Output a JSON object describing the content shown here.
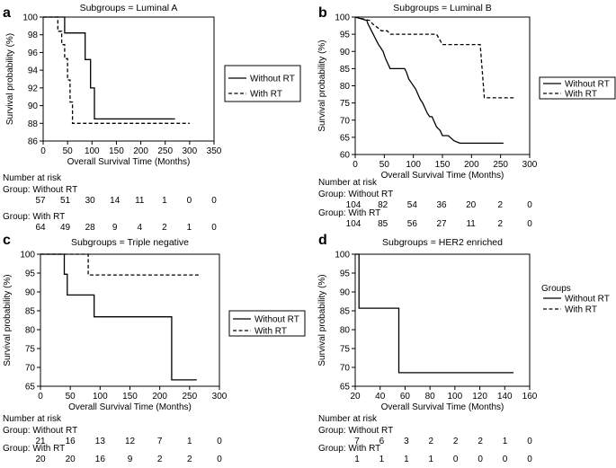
{
  "chart_data": [
    {
      "type": "line",
      "panel_label": "a",
      "title": "Subgroups = Luminal A",
      "xlabel": "Overall Survival Time (Months)",
      "ylabel": "Survival probability (%)",
      "xlim": [
        0,
        350
      ],
      "ylim": [
        86,
        100
      ],
      "xticks": [
        0,
        50,
        100,
        150,
        200,
        250,
        300,
        350
      ],
      "yticks": [
        86,
        88,
        90,
        92,
        94,
        96,
        98,
        100
      ],
      "legend": {
        "title": "",
        "placement": "right-top"
      },
      "series": [
        {
          "name": "Without RT",
          "style": "solid",
          "x": [
            0,
            44,
            44,
            86,
            86,
            97,
            97,
            105,
            105,
            113,
            113,
            270
          ],
          "y": [
            100,
            100,
            98.2,
            98.2,
            95.2,
            95.2,
            92,
            92,
            88.5,
            88.5,
            88.5,
            88.5
          ]
        },
        {
          "name": "With RT",
          "style": "dashed",
          "x": [
            0,
            30,
            30,
            38,
            38,
            44,
            44,
            50,
            50,
            55,
            55,
            60,
            60,
            67,
            67,
            70,
            70,
            300
          ],
          "y": [
            100,
            100,
            98.4,
            98.4,
            96.9,
            96.9,
            95.3,
            95.3,
            92.9,
            92.9,
            90.4,
            90.4,
            88,
            88,
            88,
            88,
            88,
            88
          ]
        }
      ],
      "risk_table": {
        "title": "Number at risk",
        "groups": [
          {
            "label": "Group: Without RT",
            "values": [
              "57",
              "51",
              "30",
              "14",
              "11",
              "1",
              "0",
              "0"
            ]
          },
          {
            "label": "Group: With RT",
            "values": [
              "64",
              "49",
              "28",
              "9",
              "4",
              "2",
              "1",
              "0"
            ]
          }
        ]
      }
    },
    {
      "type": "line",
      "panel_label": "b",
      "title": "Subgroups = Luminal B",
      "xlabel": "Overall Survival Time (Months)",
      "ylabel": "Survival probability (%)",
      "xlim": [
        0,
        300
      ],
      "ylim": [
        60,
        100
      ],
      "xticks": [
        0,
        50,
        100,
        150,
        200,
        250,
        300
      ],
      "yticks": [
        60,
        65,
        70,
        75,
        80,
        85,
        90,
        95,
        100
      ],
      "legend": {
        "title": "",
        "placement": "right-middle"
      },
      "series": [
        {
          "name": "Without RT",
          "style": "solid",
          "x": [
            0,
            20,
            22,
            25,
            28,
            31,
            34,
            37,
            40,
            44,
            48,
            52,
            56,
            60,
            85,
            88,
            92,
            96,
            100,
            104,
            108,
            112,
            116,
            120,
            124,
            128,
            132,
            140,
            146,
            150,
            155,
            160,
            170,
            180,
            255
          ],
          "y": [
            100,
            99,
            98,
            97,
            96,
            95,
            94,
            93,
            92,
            91,
            90,
            88,
            86.5,
            85,
            85,
            84,
            82,
            81,
            80,
            79,
            77.5,
            76,
            75,
            73.5,
            72,
            71,
            71,
            68,
            67,
            65.5,
            65.5,
            65.5,
            64,
            63.3,
            63.3
          ]
        },
        {
          "name": "With RT",
          "style": "dashed",
          "x": [
            0,
            25,
            30,
            38,
            45,
            55,
            60,
            65,
            140,
            150,
            215,
            222,
            275
          ],
          "y": [
            100,
            99,
            98,
            97,
            96,
            96,
            95,
            95,
            95,
            92,
            92,
            76.5,
            76.5
          ]
        }
      ],
      "risk_table": {
        "title": "Number at risk",
        "groups": [
          {
            "label": "Group: Without RT",
            "values": [
              "104",
              "82",
              "54",
              "36",
              "20",
              "2",
              "0"
            ]
          },
          {
            "label": "Group: With RT",
            "values": [
              "104",
              "85",
              "56",
              "27",
              "11",
              "2",
              "0"
            ]
          }
        ]
      }
    },
    {
      "type": "line",
      "panel_label": "c",
      "title": "Subgroups = Triple negative",
      "xlabel": "Overall Survival Time (Months)",
      "ylabel": "Survival probability (%)",
      "xlim": [
        0,
        300
      ],
      "ylim": [
        65,
        100
      ],
      "xticks": [
        0,
        50,
        100,
        150,
        200,
        250,
        300
      ],
      "yticks": [
        65,
        70,
        75,
        80,
        85,
        90,
        95,
        100
      ],
      "legend": {
        "title": "",
        "placement": "right-middle"
      },
      "series": [
        {
          "name": "Without RT",
          "style": "solid",
          "x": [
            0,
            40,
            40,
            45,
            45,
            90,
            90,
            220,
            220,
            262
          ],
          "y": [
            100,
            100,
            94.7,
            94.7,
            89.2,
            89.2,
            83.4,
            83.4,
            66.7,
            66.7
          ]
        },
        {
          "name": "With RT",
          "style": "dashed",
          "x": [
            0,
            80,
            80,
            268
          ],
          "y": [
            100,
            100,
            94.5,
            94.5
          ]
        }
      ],
      "risk_table": {
        "title": "Number at risk",
        "groups": [
          {
            "label": "Group: Without RT",
            "values": [
              "21",
              "16",
              "13",
              "12",
              "7",
              "1",
              "0"
            ]
          },
          {
            "label": "Group: With RT",
            "values": [
              "20",
              "20",
              "16",
              "9",
              "2",
              "2",
              "0"
            ]
          }
        ]
      }
    },
    {
      "type": "line",
      "panel_label": "d",
      "title": "Subgroups = HER2 enriched",
      "xlabel": "Overall Survival Time (Months)",
      "ylabel": "Survival probability (%)",
      "xlim": [
        20,
        160
      ],
      "ylim": [
        65,
        100
      ],
      "xticks": [
        20,
        40,
        60,
        80,
        100,
        120,
        140,
        160
      ],
      "yticks": [
        65,
        70,
        75,
        80,
        85,
        90,
        95,
        100
      ],
      "legend": {
        "title": "Groups",
        "placement": "right-middle"
      },
      "series": [
        {
          "name": "Without RT",
          "style": "solid",
          "x": [
            20,
            23,
            23,
            55,
            55,
            147
          ],
          "y": [
            100,
            100,
            85.7,
            85.7,
            68.6,
            68.6
          ]
        },
        {
          "name": "With RT",
          "style": "dashed",
          "x": [],
          "y": []
        }
      ],
      "risk_table": {
        "title": "Number at risk",
        "groups": [
          {
            "label": "Group: Without RT",
            "values": [
              "7",
              "6",
              "3",
              "2",
              "2",
              "2",
              "1",
              "0"
            ]
          },
          {
            "label": "Group: With RT",
            "values": [
              "1",
              "1",
              "1",
              "1",
              "0",
              "0",
              "0",
              "0"
            ]
          }
        ]
      }
    }
  ]
}
